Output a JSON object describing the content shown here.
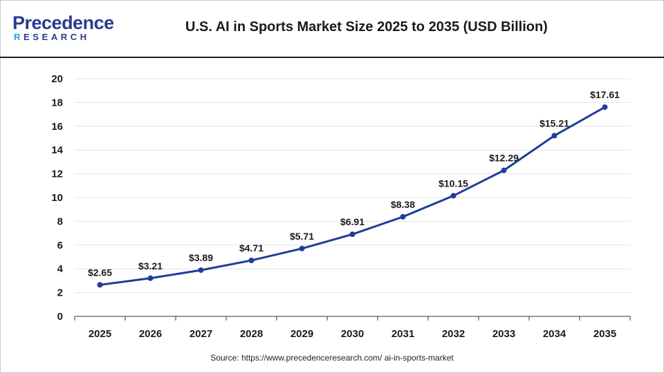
{
  "header": {
    "logo_main": "Precedence",
    "logo_sub_hl": "R",
    "logo_sub": "ESEARCH",
    "title": "U.S. AI in Sports Market Size 2025 to 2035 (USD Billion)"
  },
  "footer": {
    "source": "Source: https://www.precedenceresearch.com/ ai-in-sports-market"
  },
  "colors": {
    "line": "#1f3d99",
    "grid": "#e3e3e3",
    "axis": "#333333",
    "brand": "#2b3a8c",
    "brand_accent": "#1aa3dd"
  },
  "chart_data": {
    "type": "line",
    "title": "U.S. AI in Sports Market Size 2025 to 2035 (USD Billion)",
    "xlabel": "",
    "ylabel": "",
    "categories": [
      "2025",
      "2026",
      "2027",
      "2028",
      "2029",
      "2030",
      "2031",
      "2032",
      "2033",
      "2034",
      "2035"
    ],
    "values": [
      2.65,
      3.21,
      3.89,
      4.71,
      5.71,
      6.91,
      8.38,
      10.15,
      12.29,
      15.21,
      17.61
    ],
    "data_labels": [
      "$2.65",
      "$3.21",
      "$3.89",
      "$4.71",
      "$5.71",
      "$6.91",
      "$8.38",
      "$10.15",
      "$12.29",
      "$15.21",
      "$17.61"
    ],
    "ylim": [
      0,
      20
    ],
    "yticks": [
      0,
      2,
      4,
      6,
      8,
      10,
      12,
      14,
      16,
      18,
      20
    ],
    "grid": true,
    "legend": "none"
  }
}
